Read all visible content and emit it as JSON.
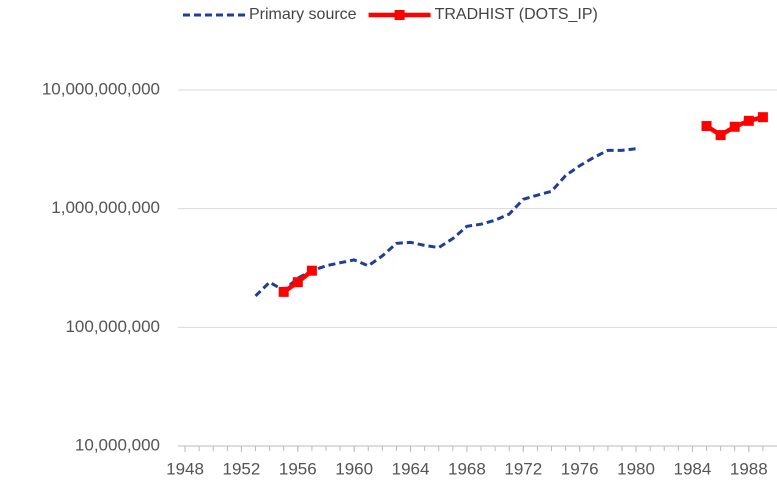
{
  "chart_data": {
    "type": "line",
    "log_y": true,
    "grid": true,
    "legend": "top",
    "xlim": [
      1947.5,
      1990
    ],
    "xticks": [
      1948,
      1952,
      1956,
      1960,
      1964,
      1968,
      1972,
      1976,
      1980,
      1984,
      1988
    ],
    "xminorticks": [
      1948,
      1949,
      1950,
      1951,
      1952,
      1953,
      1954,
      1955,
      1956,
      1957,
      1958,
      1959,
      1960,
      1961,
      1962,
      1963,
      1964,
      1965,
      1966,
      1967,
      1968,
      1969,
      1970,
      1971,
      1972,
      1973,
      1974,
      1975,
      1976,
      1977,
      1978,
      1979,
      1980,
      1981,
      1982,
      1983,
      1984,
      1985,
      1986,
      1987,
      1988,
      1989
    ],
    "ylim": [
      10000000,
      10000000000
    ],
    "yticks": [
      {
        "value": 10000000,
        "label": "10,000,000"
      },
      {
        "value": 100000000,
        "label": "100,000,000"
      },
      {
        "value": 1000000000,
        "label": "1,000,000,000"
      },
      {
        "value": 10000000000,
        "label": "10,000,000,000"
      }
    ],
    "series": [
      {
        "name": "Primary source",
        "color": "#1f3e99",
        "dash": true,
        "markers": false,
        "x": [
          1953,
          1954,
          1955,
          1956,
          1957,
          1958,
          1959,
          1960,
          1961,
          1962,
          1963,
          1964,
          1965,
          1966,
          1967,
          1968,
          1969,
          1970,
          1971,
          1972,
          1973,
          1974,
          1975,
          1976,
          1977,
          1978,
          1979,
          1980
        ],
        "values": [
          184000000,
          240000000,
          205000000,
          260000000,
          300000000,
          330000000,
          350000000,
          370000000,
          330000000,
          400000000,
          510000000,
          520000000,
          490000000,
          470000000,
          560000000,
          710000000,
          740000000,
          800000000,
          900000000,
          1200000000,
          1300000000,
          1400000000,
          1900000000,
          2300000000,
          2700000000,
          3100000000,
          3100000000,
          3200000000
        ]
      },
      {
        "name": "TRADHIST (DOTS_IP)",
        "color": "#ff0000",
        "dash": false,
        "markers": true,
        "x": [
          1955,
          1956,
          1957,
          1985,
          1986,
          1987,
          1988,
          1989
        ],
        "values": [
          199000000,
          240000000,
          300000000,
          4970000000,
          4170000000,
          4900000000,
          5500000000,
          5900000000
        ]
      }
    ]
  }
}
